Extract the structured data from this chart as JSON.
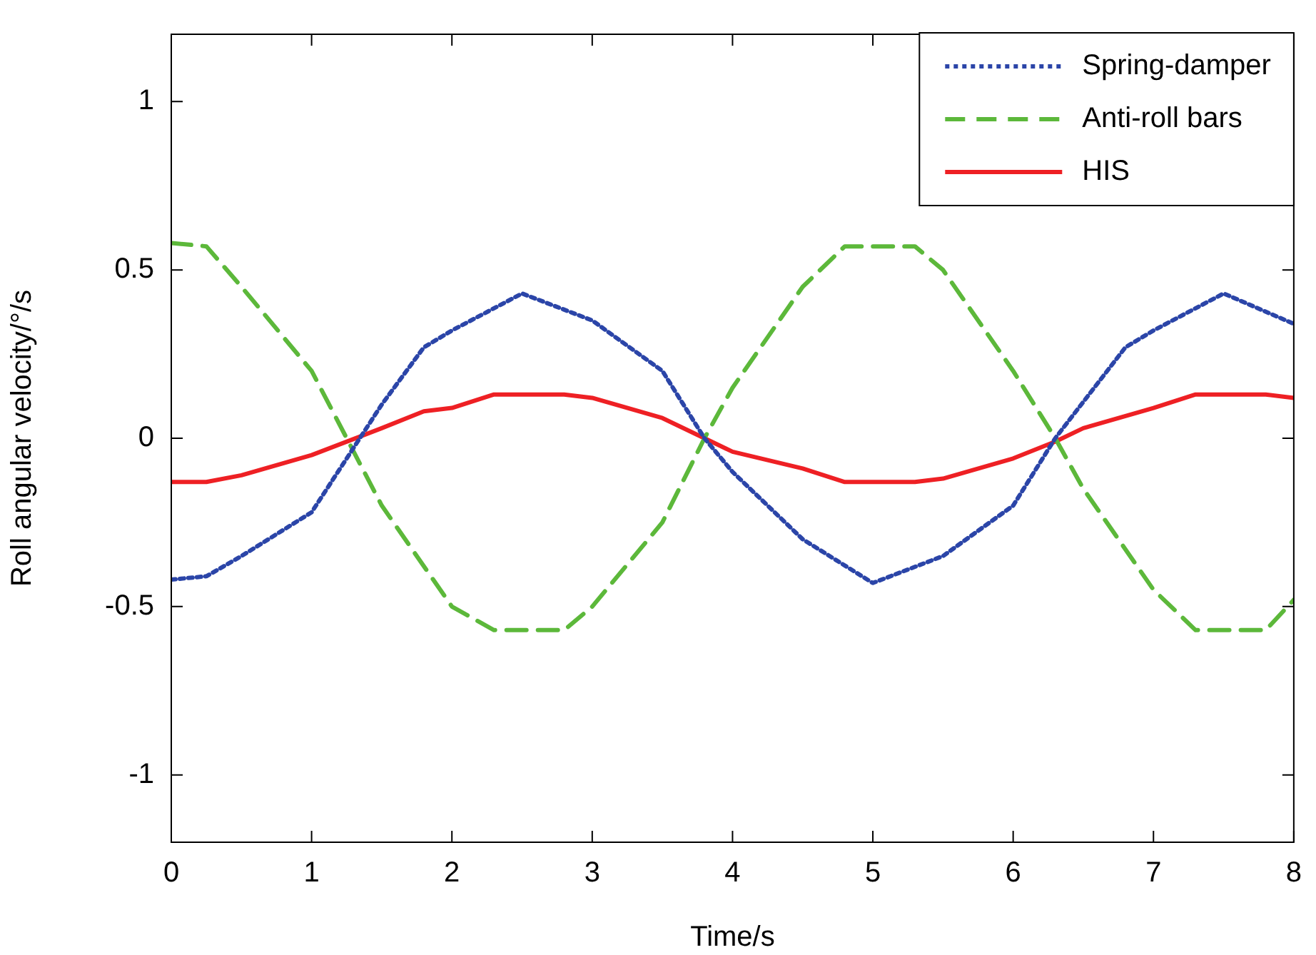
{
  "chart_data": {
    "type": "line",
    "xlabel": "Time/s",
    "ylabel": "Roll angular velocity/°/s",
    "xlim": [
      0,
      8
    ],
    "ylim": [
      -1.2,
      1.2
    ],
    "xticks": [
      0,
      1,
      2,
      3,
      4,
      5,
      6,
      7,
      8
    ],
    "yticks": [
      -1,
      -0.5,
      0,
      0.5,
      1
    ],
    "grid": false,
    "legend": "top right",
    "marker": "none",
    "series": [
      {
        "name": "Spring-damper",
        "color": "#2b45a8",
        "line_style": "dotted",
        "x": [
          0,
          0.25,
          0.5,
          1,
          1.25,
          1.5,
          1.8,
          2,
          2.5,
          3,
          3.5,
          3.8,
          4,
          4.5,
          5,
          5.5,
          6,
          6.3,
          6.8,
          7,
          7.5,
          8
        ],
        "values": [
          -0.42,
          -0.41,
          -0.35,
          -0.22,
          -0.06,
          0.1,
          0.27,
          0.32,
          0.43,
          0.35,
          0.2,
          0,
          -0.1,
          -0.3,
          -0.43,
          -0.35,
          -0.2,
          0,
          0.27,
          0.32,
          0.43,
          0.34
        ]
      },
      {
        "name": "Anti-roll bars",
        "color": "#5cb83a",
        "line_style": "dashed",
        "x": [
          0,
          0.25,
          0.5,
          1,
          1.25,
          1.5,
          2,
          2.3,
          2.8,
          3,
          3.5,
          3.8,
          4,
          4.5,
          4.8,
          5.3,
          5.5,
          6,
          6.3,
          6.5,
          7,
          7.3,
          7.8,
          8
        ],
        "values": [
          0.58,
          0.57,
          0.45,
          0.2,
          0,
          -0.2,
          -0.5,
          -0.57,
          -0.57,
          -0.5,
          -0.25,
          0,
          0.15,
          0.45,
          0.57,
          0.57,
          0.5,
          0.2,
          0,
          -0.15,
          -0.45,
          -0.57,
          -0.57,
          -0.48
        ]
      },
      {
        "name": "HIS",
        "color": "#ee2024",
        "line_style": "solid",
        "x": [
          0,
          0.25,
          0.5,
          1,
          1.5,
          1.8,
          2,
          2.3,
          2.8,
          3,
          3.5,
          3.8,
          4,
          4.5,
          4.8,
          5.3,
          5.5,
          6,
          6.3,
          6.5,
          7,
          7.3,
          7.8,
          8
        ],
        "values": [
          -0.13,
          -0.13,
          -0.11,
          -0.05,
          0.03,
          0.08,
          0.09,
          0.13,
          0.13,
          0.12,
          0.06,
          0,
          -0.04,
          -0.09,
          -0.13,
          -0.13,
          -0.12,
          -0.06,
          -0.01,
          0.03,
          0.09,
          0.13,
          0.13,
          0.12
        ]
      }
    ]
  }
}
